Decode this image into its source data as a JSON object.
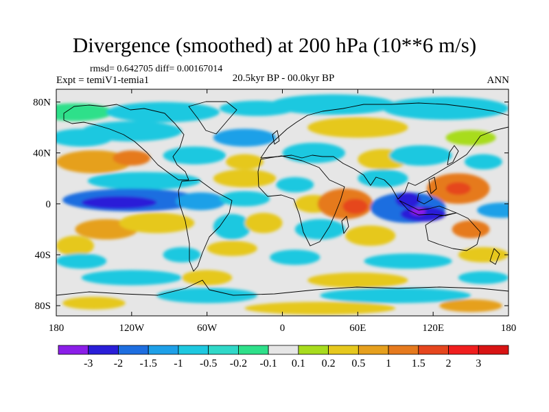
{
  "title": "Divergence (smoothed) at 200 hPa (10**6 m/s)",
  "stats_text": "rmsd= 0.642705 diff= 0.00167014",
  "experiment_text": "Expt = temiV1-temia1",
  "period_text": "20.5kyr BP - 00.0kyr BP",
  "season_text": "ANN",
  "lat_ticks": [
    {
      "label": "80N",
      "lat": 80
    },
    {
      "label": "40N",
      "lat": 40
    },
    {
      "label": "0",
      "lat": 0
    },
    {
      "label": "40S",
      "lat": -40
    },
    {
      "label": "80S",
      "lat": -80
    }
  ],
  "lon_ticks": [
    {
      "label": "180",
      "lon": -180
    },
    {
      "label": "120W",
      "lon": -120
    },
    {
      "label": "60W",
      "lon": -60
    },
    {
      "label": "0",
      "lon": 0
    },
    {
      "label": "60E",
      "lon": 60
    },
    {
      "label": "120E",
      "lon": 120
    },
    {
      "label": "180",
      "lon": 180
    }
  ],
  "colorbar": {
    "labels": [
      "-3",
      "-2",
      "-1.5",
      "-1",
      "-0.5",
      "-0.2",
      "-0.1",
      "0.1",
      "0.2",
      "0.5",
      "1",
      "1.5",
      "2",
      "3"
    ],
    "colors": [
      "#8b1ee8",
      "#2a1ed8",
      "#1e6ee0",
      "#1ea0e8",
      "#1ec8e0",
      "#30d8c8",
      "#2ee08a",
      "#e6e6e6",
      "#a8dc1e",
      "#e6c81e",
      "#e6a01e",
      "#e67a1e",
      "#e6461e",
      "#f01e1e",
      "#d81414"
    ]
  },
  "map_data": {
    "background": "#e6e6e6",
    "blobs": [
      {
        "lon": -165,
        "lat": 72,
        "rx": 30,
        "ry": 7,
        "c": "#2ee08a"
      },
      {
        "lon": -95,
        "lat": 72,
        "rx": 45,
        "ry": 8,
        "c": "#1ec8e0"
      },
      {
        "lon": -20,
        "lat": 75,
        "rx": 30,
        "ry": 6,
        "c": "#1ec8e0"
      },
      {
        "lon": 40,
        "lat": 78,
        "rx": 50,
        "ry": 8,
        "c": "#1ec8e0"
      },
      {
        "lon": 130,
        "lat": 75,
        "rx": 50,
        "ry": 9,
        "c": "#1ec8e0"
      },
      {
        "lon": 60,
        "lat": 60,
        "rx": 40,
        "ry": 8,
        "c": "#e6c81e"
      },
      {
        "lon": -120,
        "lat": 57,
        "rx": 40,
        "ry": 8,
        "c": "#1ec8e0"
      },
      {
        "lon": -30,
        "lat": 52,
        "rx": 25,
        "ry": 7,
        "c": "#1ea0e8"
      },
      {
        "lon": -160,
        "lat": 52,
        "rx": 25,
        "ry": 7,
        "c": "#1ec8e0"
      },
      {
        "lon": 150,
        "lat": 52,
        "rx": 20,
        "ry": 6,
        "c": "#a8dc1e"
      },
      {
        "lon": -150,
        "lat": 33,
        "rx": 30,
        "ry": 9,
        "c": "#e6a01e"
      },
      {
        "lon": -120,
        "lat": 36,
        "rx": 15,
        "ry": 6,
        "c": "#e67a1e"
      },
      {
        "lon": -70,
        "lat": 38,
        "rx": 25,
        "ry": 7,
        "c": "#1ec8e0"
      },
      {
        "lon": -30,
        "lat": 33,
        "rx": 15,
        "ry": 6,
        "c": "#e6c81e"
      },
      {
        "lon": 25,
        "lat": 40,
        "rx": 25,
        "ry": 8,
        "c": "#1ec8e0"
      },
      {
        "lon": 80,
        "lat": 35,
        "rx": 20,
        "ry": 8,
        "c": "#e6c81e"
      },
      {
        "lon": 110,
        "lat": 38,
        "rx": 25,
        "ry": 8,
        "c": "#1ec8e0"
      },
      {
        "lon": 160,
        "lat": 33,
        "rx": 15,
        "ry": 6,
        "c": "#1ec8e0"
      },
      {
        "lon": -110,
        "lat": 18,
        "rx": 45,
        "ry": 7,
        "c": "#1ec8e0"
      },
      {
        "lon": -30,
        "lat": 20,
        "rx": 25,
        "ry": 7,
        "c": "#e6c81e"
      },
      {
        "lon": 10,
        "lat": 15,
        "rx": 15,
        "ry": 6,
        "c": "#1ec8e0"
      },
      {
        "lon": 80,
        "lat": 20,
        "rx": 20,
        "ry": 7,
        "c": "#1ec8e0"
      },
      {
        "lon": 140,
        "lat": 12,
        "rx": 25,
        "ry": 12,
        "c": "#e67a1e"
      },
      {
        "lon": 140,
        "lat": 12,
        "rx": 10,
        "ry": 5,
        "c": "#e6461e"
      },
      {
        "lon": -120,
        "lat": 3,
        "rx": 55,
        "ry": 9,
        "c": "#1e6ee0"
      },
      {
        "lon": -130,
        "lat": 1,
        "rx": 30,
        "ry": 5,
        "c": "#2a1ed8"
      },
      {
        "lon": -65,
        "lat": 2,
        "rx": 20,
        "ry": 7,
        "c": "#1ea0e8"
      },
      {
        "lon": -30,
        "lat": 4,
        "rx": 20,
        "ry": 6,
        "c": "#1ec8e0"
      },
      {
        "lon": 25,
        "lat": 0,
        "rx": 15,
        "ry": 7,
        "c": "#e6c81e"
      },
      {
        "lon": 50,
        "lat": 0,
        "rx": 22,
        "ry": 12,
        "c": "#e67a1e"
      },
      {
        "lon": 58,
        "lat": -2,
        "rx": 10,
        "ry": 6,
        "c": "#e6461e"
      },
      {
        "lon": 100,
        "lat": -3,
        "rx": 30,
        "ry": 12,
        "c": "#1e6ee0"
      },
      {
        "lon": 100,
        "lat": 3,
        "rx": 10,
        "ry": 6,
        "c": "#2a1ed8"
      },
      {
        "lon": 112,
        "lat": -8,
        "rx": 18,
        "ry": 6,
        "c": "#2a1ed8"
      },
      {
        "lon": 108,
        "lat": -6,
        "rx": 6,
        "ry": 3,
        "c": "#8b1ee8"
      },
      {
        "lon": 175,
        "lat": -5,
        "rx": 20,
        "ry": 6,
        "c": "#1ea0e8"
      },
      {
        "lon": -140,
        "lat": -20,
        "rx": 25,
        "ry": 8,
        "c": "#e6a01e"
      },
      {
        "lon": -100,
        "lat": -15,
        "rx": 30,
        "ry": 8,
        "c": "#e6c81e"
      },
      {
        "lon": -40,
        "lat": -18,
        "rx": 15,
        "ry": 10,
        "c": "#1ec8e0"
      },
      {
        "lon": -15,
        "lat": -15,
        "rx": 15,
        "ry": 8,
        "c": "#e6c81e"
      },
      {
        "lon": 30,
        "lat": -20,
        "rx": 20,
        "ry": 8,
        "c": "#1ec8e0"
      },
      {
        "lon": 70,
        "lat": -25,
        "rx": 20,
        "ry": 8,
        "c": "#e6c81e"
      },
      {
        "lon": 150,
        "lat": -20,
        "rx": 15,
        "ry": 7,
        "c": "#e67a1e"
      },
      {
        "lon": -165,
        "lat": -33,
        "rx": 15,
        "ry": 8,
        "c": "#e6c81e"
      },
      {
        "lon": -160,
        "lat": -45,
        "rx": 20,
        "ry": 6,
        "c": "#1ec8e0"
      },
      {
        "lon": -80,
        "lat": -40,
        "rx": 15,
        "ry": 6,
        "c": "#1ec8e0"
      },
      {
        "lon": -40,
        "lat": -35,
        "rx": 20,
        "ry": 6,
        "c": "#e6c81e"
      },
      {
        "lon": 10,
        "lat": -42,
        "rx": 20,
        "ry": 6,
        "c": "#1ec8e0"
      },
      {
        "lon": 100,
        "lat": -45,
        "rx": 35,
        "ry": 6,
        "c": "#1ec8e0"
      },
      {
        "lon": 160,
        "lat": -40,
        "rx": 20,
        "ry": 6,
        "c": "#e6c81e"
      },
      {
        "lon": -120,
        "lat": -58,
        "rx": 40,
        "ry": 6,
        "c": "#1ec8e0"
      },
      {
        "lon": -60,
        "lat": -58,
        "rx": 20,
        "ry": 6,
        "c": "#e6c81e"
      },
      {
        "lon": 60,
        "lat": -60,
        "rx": 40,
        "ry": 6,
        "c": "#e6c81e"
      },
      {
        "lon": 160,
        "lat": -58,
        "rx": 20,
        "ry": 5,
        "c": "#1ec8e0"
      },
      {
        "lon": -60,
        "lat": -72,
        "rx": 40,
        "ry": 6,
        "c": "#1ec8e0"
      },
      {
        "lon": 90,
        "lat": -72,
        "rx": 60,
        "ry": 6,
        "c": "#1ec8e0"
      },
      {
        "lon": -150,
        "lat": -78,
        "rx": 25,
        "ry": 5,
        "c": "#e6c81e"
      },
      {
        "lon": 30,
        "lat": -82,
        "rx": 60,
        "ry": 5,
        "c": "#e6c81e"
      },
      {
        "lon": 150,
        "lat": -80,
        "rx": 25,
        "ry": 5,
        "c": "#e6a01e"
      }
    ]
  }
}
